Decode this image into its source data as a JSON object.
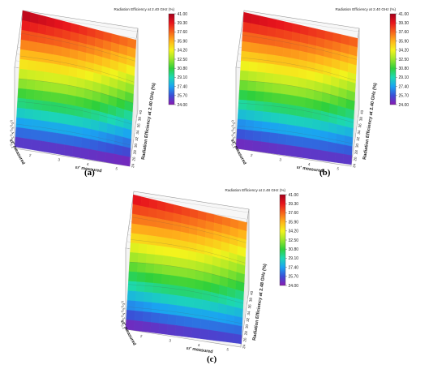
{
  "figure": {
    "captions": [
      "(a)",
      "(b)",
      "(c)"
    ]
  },
  "colorscale": {
    "ticks": [
      "41.00",
      "39.30",
      "37.60",
      "35.90",
      "34.20",
      "32.50",
      "30.80",
      "29.10",
      "27.40",
      "25.70",
      "24.00"
    ],
    "colors": [
      "#a5001b",
      "#e8141c",
      "#f6621b",
      "#ffb31a",
      "#f3f31c",
      "#9be62a",
      "#2fd03a",
      "#1cd9b4",
      "#1aa3f2",
      "#3b4ed6",
      "#8a1ab3"
    ]
  },
  "chart_data": [
    {
      "type": "surface",
      "panel": "(a)",
      "title": "Radiation Efficiency at 2.40 GHz (%)",
      "zlabel": "Radiation Efficiency at 2.40 GHz (%)",
      "xlabel": "εr' measured",
      "ylabel": "εr'' measured",
      "z_ticks": [
        "24",
        "26",
        "28",
        "30",
        "32",
        "34",
        "36",
        "38",
        "40"
      ],
      "x_ticks": [
        "2",
        "3",
        "4",
        "5"
      ],
      "y_ticks": [
        "0.1",
        "0.2",
        "0.3",
        "0.4",
        "0.5",
        "0.6"
      ],
      "zlim": [
        24,
        41
      ],
      "corner_values": {
        "front_left": 24.5,
        "front_right": 24.0,
        "back_left": 41.0,
        "back_right": 37.5
      }
    },
    {
      "type": "surface",
      "panel": "(b)",
      "title": "Radiation Efficiency at 2.40 GHz (%)",
      "zlabel": "Radiation Efficiency at 2.40 GHz (%)",
      "xlabel": "εr' measured",
      "ylabel": "εr'' measured",
      "z_ticks": [
        "24",
        "26",
        "28",
        "30",
        "32",
        "34",
        "36",
        "38",
        "40"
      ],
      "x_ticks": [
        "2",
        "3",
        "4",
        "5"
      ],
      "y_ticks": [
        "0.1",
        "0.2",
        "0.3",
        "0.4",
        "0.5",
        "0.6"
      ],
      "zlim": [
        24,
        41
      ],
      "corner_values": {
        "front_left": 24.0,
        "front_right": 24.5,
        "back_left": 40.5,
        "back_right": 38.0
      }
    },
    {
      "type": "surface",
      "panel": "(c)",
      "title": "Radiation Efficiency at 2.48 GHz (%)",
      "zlabel": "Radiation Efficiency at 2.48 GHz (%)",
      "xlabel": "εr' measured",
      "ylabel": "εr'' measured",
      "z_ticks": [
        "24",
        "26",
        "28",
        "30",
        "32",
        "34",
        "36",
        "38",
        "40"
      ],
      "x_ticks": [
        "2",
        "3",
        "4",
        "5"
      ],
      "y_ticks": [
        "0.1",
        "0.2",
        "0.3",
        "0.4",
        "0.5",
        "0.6"
      ],
      "zlim": [
        24,
        41
      ],
      "corner_values": {
        "front_left": 24.0,
        "front_right": 25.0,
        "back_left": 40.0,
        "back_right": 37.0
      }
    }
  ]
}
